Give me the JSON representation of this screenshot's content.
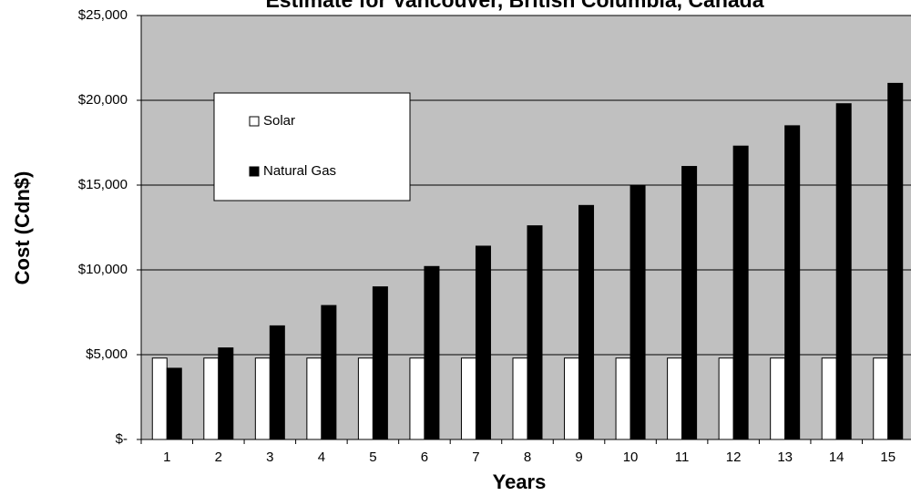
{
  "chart_data": {
    "type": "bar",
    "title": "Estimate for Vancouver, British Columbia, Canada",
    "x_label": "Years",
    "y_label": "Cost (Cdn$)",
    "categories": [
      "1",
      "2",
      "3",
      "4",
      "5",
      "6",
      "7",
      "8",
      "9",
      "10",
      "11",
      "12",
      "13",
      "14",
      "15"
    ],
    "series": [
      {
        "name": "Solar",
        "color": "#ffffff",
        "values": [
          4800,
          4800,
          4800,
          4800,
          4800,
          4800,
          4800,
          4800,
          4800,
          4800,
          4800,
          4800,
          4800,
          4800,
          4800
        ]
      },
      {
        "name": "Natural Gas",
        "color": "#000000",
        "values": [
          4200,
          5400,
          6700,
          7900,
          9000,
          10200,
          11400,
          12600,
          13800,
          15000,
          16100,
          17300,
          18500,
          19800,
          21000
        ]
      }
    ],
    "ylim": [
      0,
      25000
    ],
    "yticks": [
      {
        "value": 0,
        "label": "$-"
      },
      {
        "value": 5000,
        "label": "$5,000"
      },
      {
        "value": 10000,
        "label": "$10,000"
      },
      {
        "value": 15000,
        "label": "$15,000"
      },
      {
        "value": 20000,
        "label": "$20,000"
      },
      {
        "value": 25000,
        "label": "$25,000"
      }
    ],
    "grid": true
  }
}
